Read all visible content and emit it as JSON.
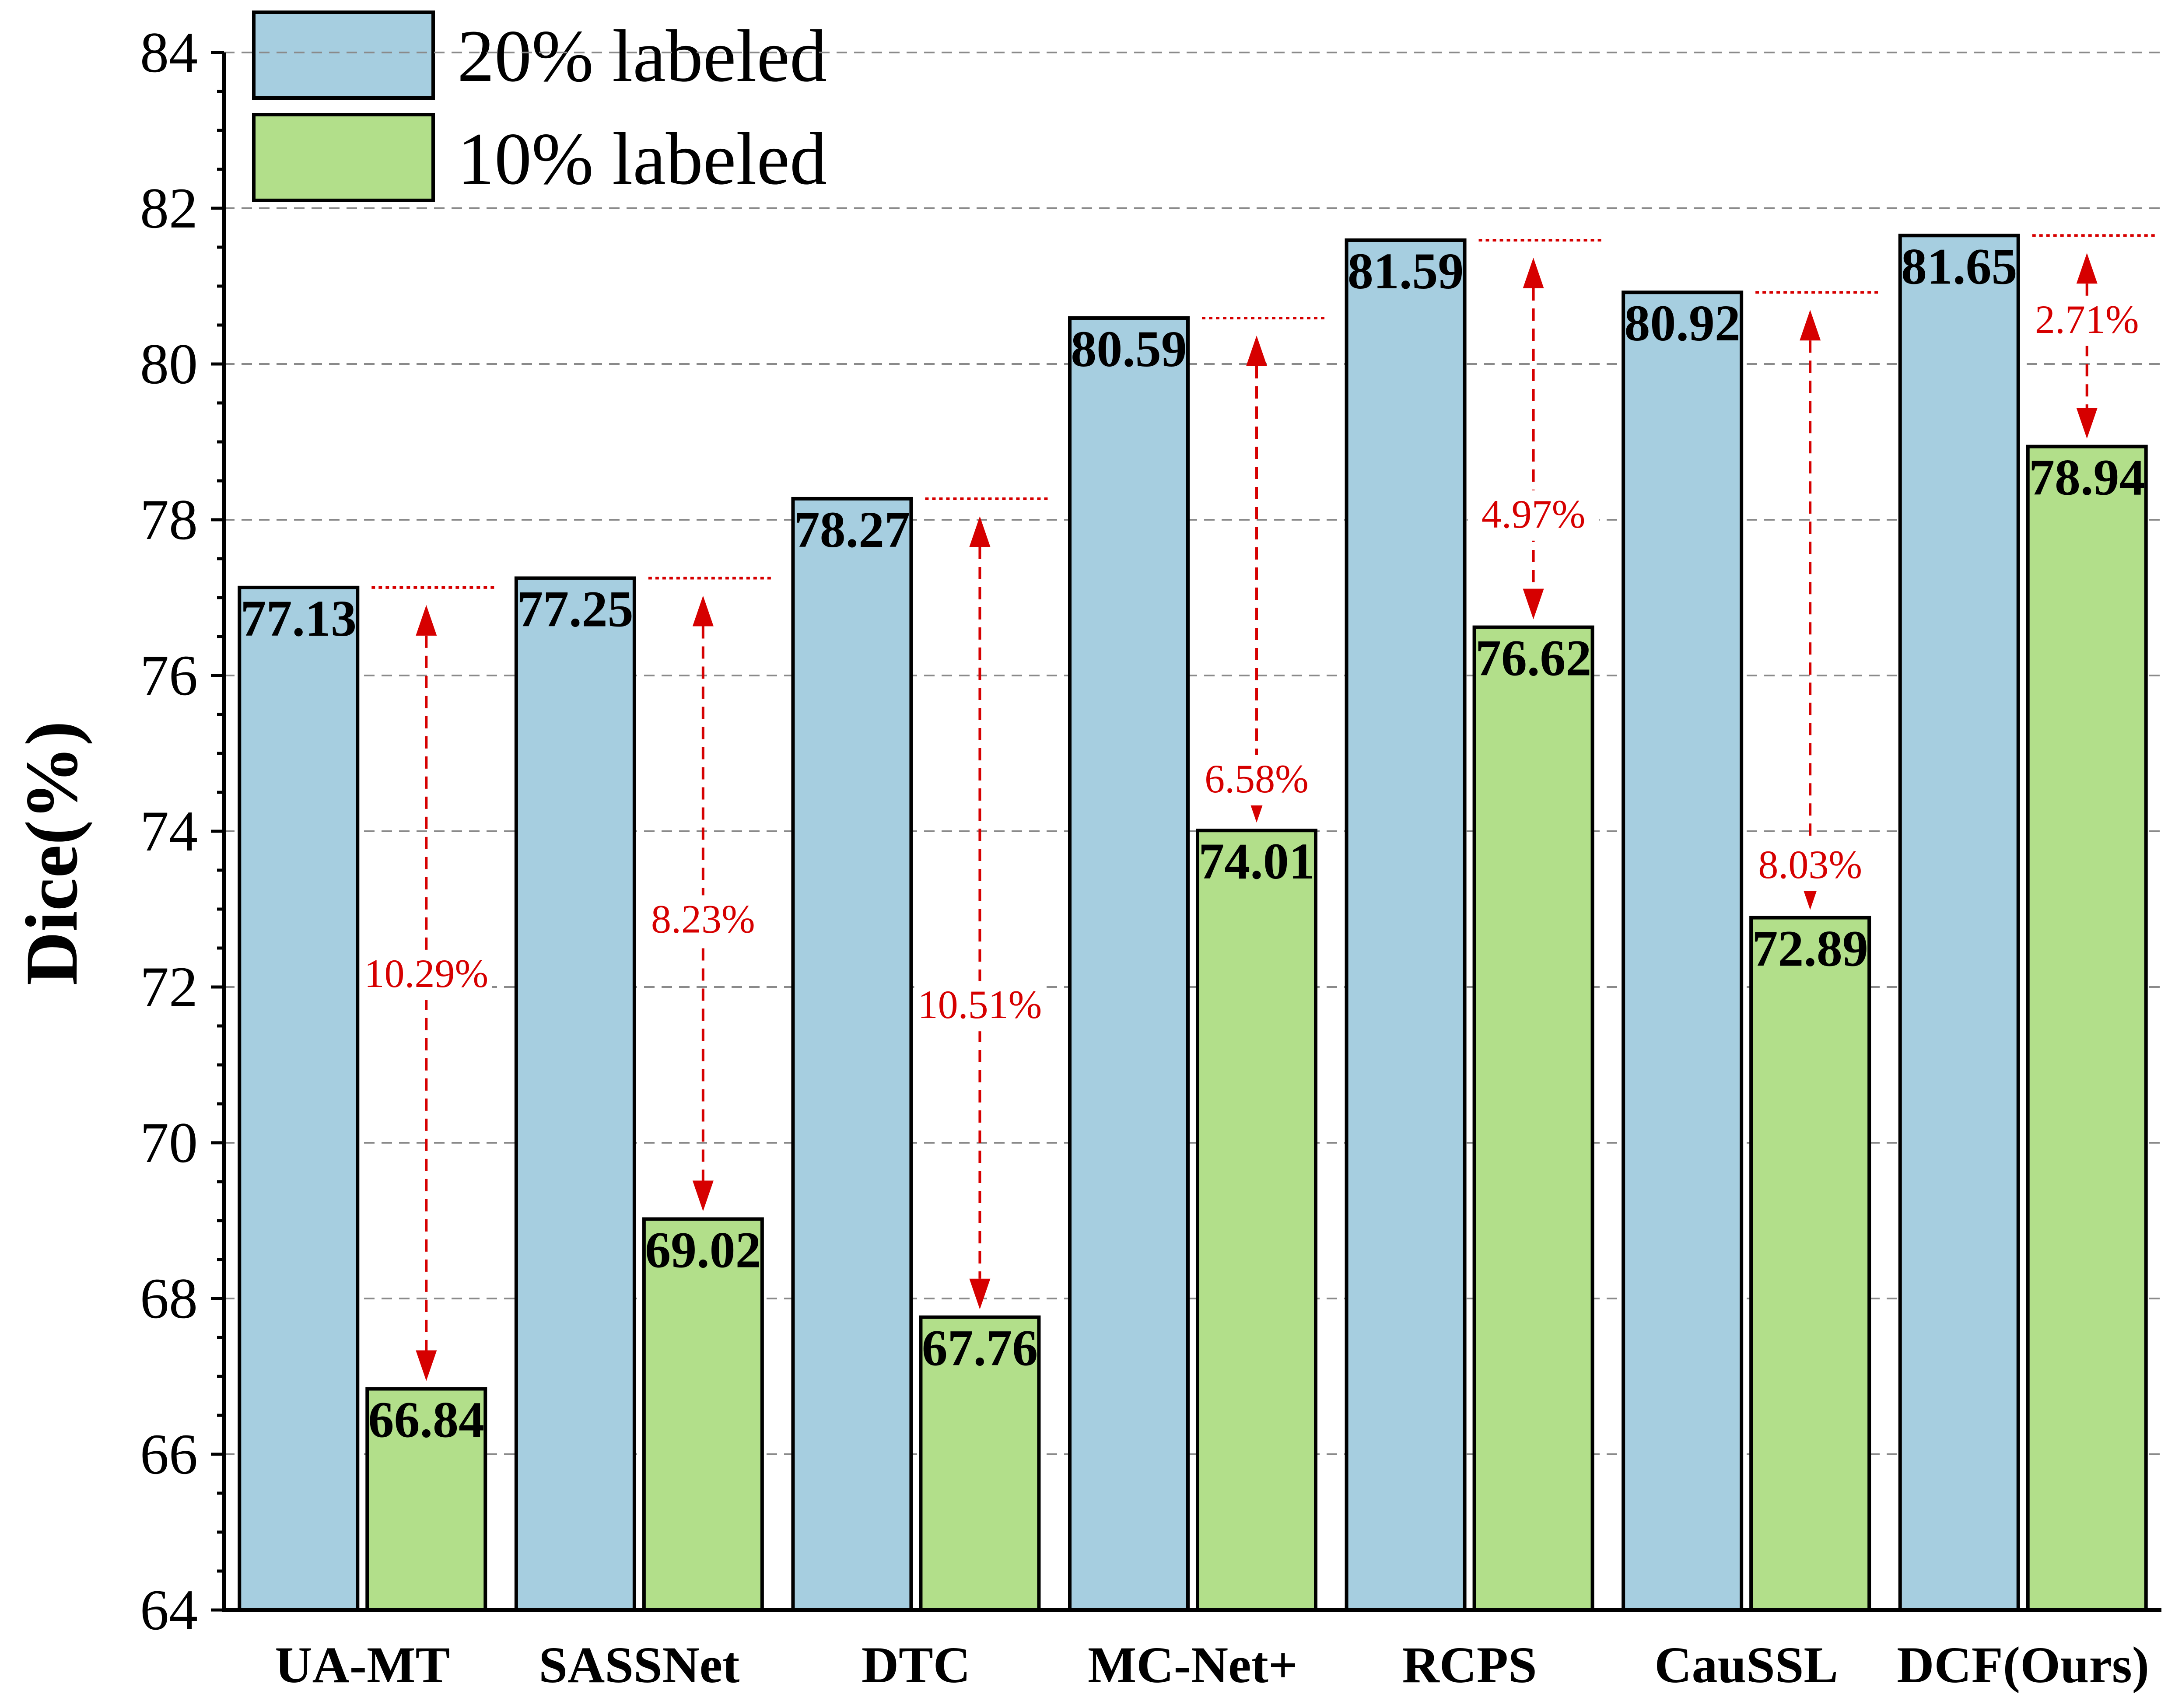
{
  "chart_data": {
    "type": "bar",
    "title": "",
    "xlabel": "",
    "ylabel": "Dice(%)",
    "ylim": [
      64,
      84
    ],
    "yticks": [
      64,
      66,
      68,
      70,
      72,
      74,
      76,
      78,
      80,
      82,
      84
    ],
    "grid": true,
    "legend_position": "top-left",
    "categories": [
      "UA-MT",
      "SASSNet",
      "DTC",
      "MC-Net+",
      "RCPS",
      "CauSSL",
      "DCF(Ours)"
    ],
    "series": [
      {
        "name": "20% labeled",
        "color": "#a6cee0",
        "values": [
          77.13,
          77.25,
          78.27,
          80.59,
          81.59,
          80.92,
          81.65
        ]
      },
      {
        "name": "10% labeled",
        "color": "#b2df8a",
        "values": [
          66.84,
          69.02,
          67.76,
          74.01,
          76.62,
          72.89,
          78.94
        ]
      }
    ],
    "value_labels_20": [
      "77.13",
      "77.25",
      "78.27",
      "80.59",
      "81.59",
      "80.92",
      "81.65"
    ],
    "value_labels_10": [
      "66.84",
      "69.02",
      "67.76",
      "74.01",
      "76.62",
      "72.89",
      "78.94"
    ],
    "annotations": [
      "10.29%",
      "8.23%",
      "10.51%",
      "6.58%",
      "4.97%",
      "8.03%",
      "2.71%"
    ],
    "annotation_label_y": [
      72.0,
      72.7,
      71.6,
      74.5,
      77.9,
      73.4,
      80.4
    ],
    "annotation_color": "#d60000"
  }
}
